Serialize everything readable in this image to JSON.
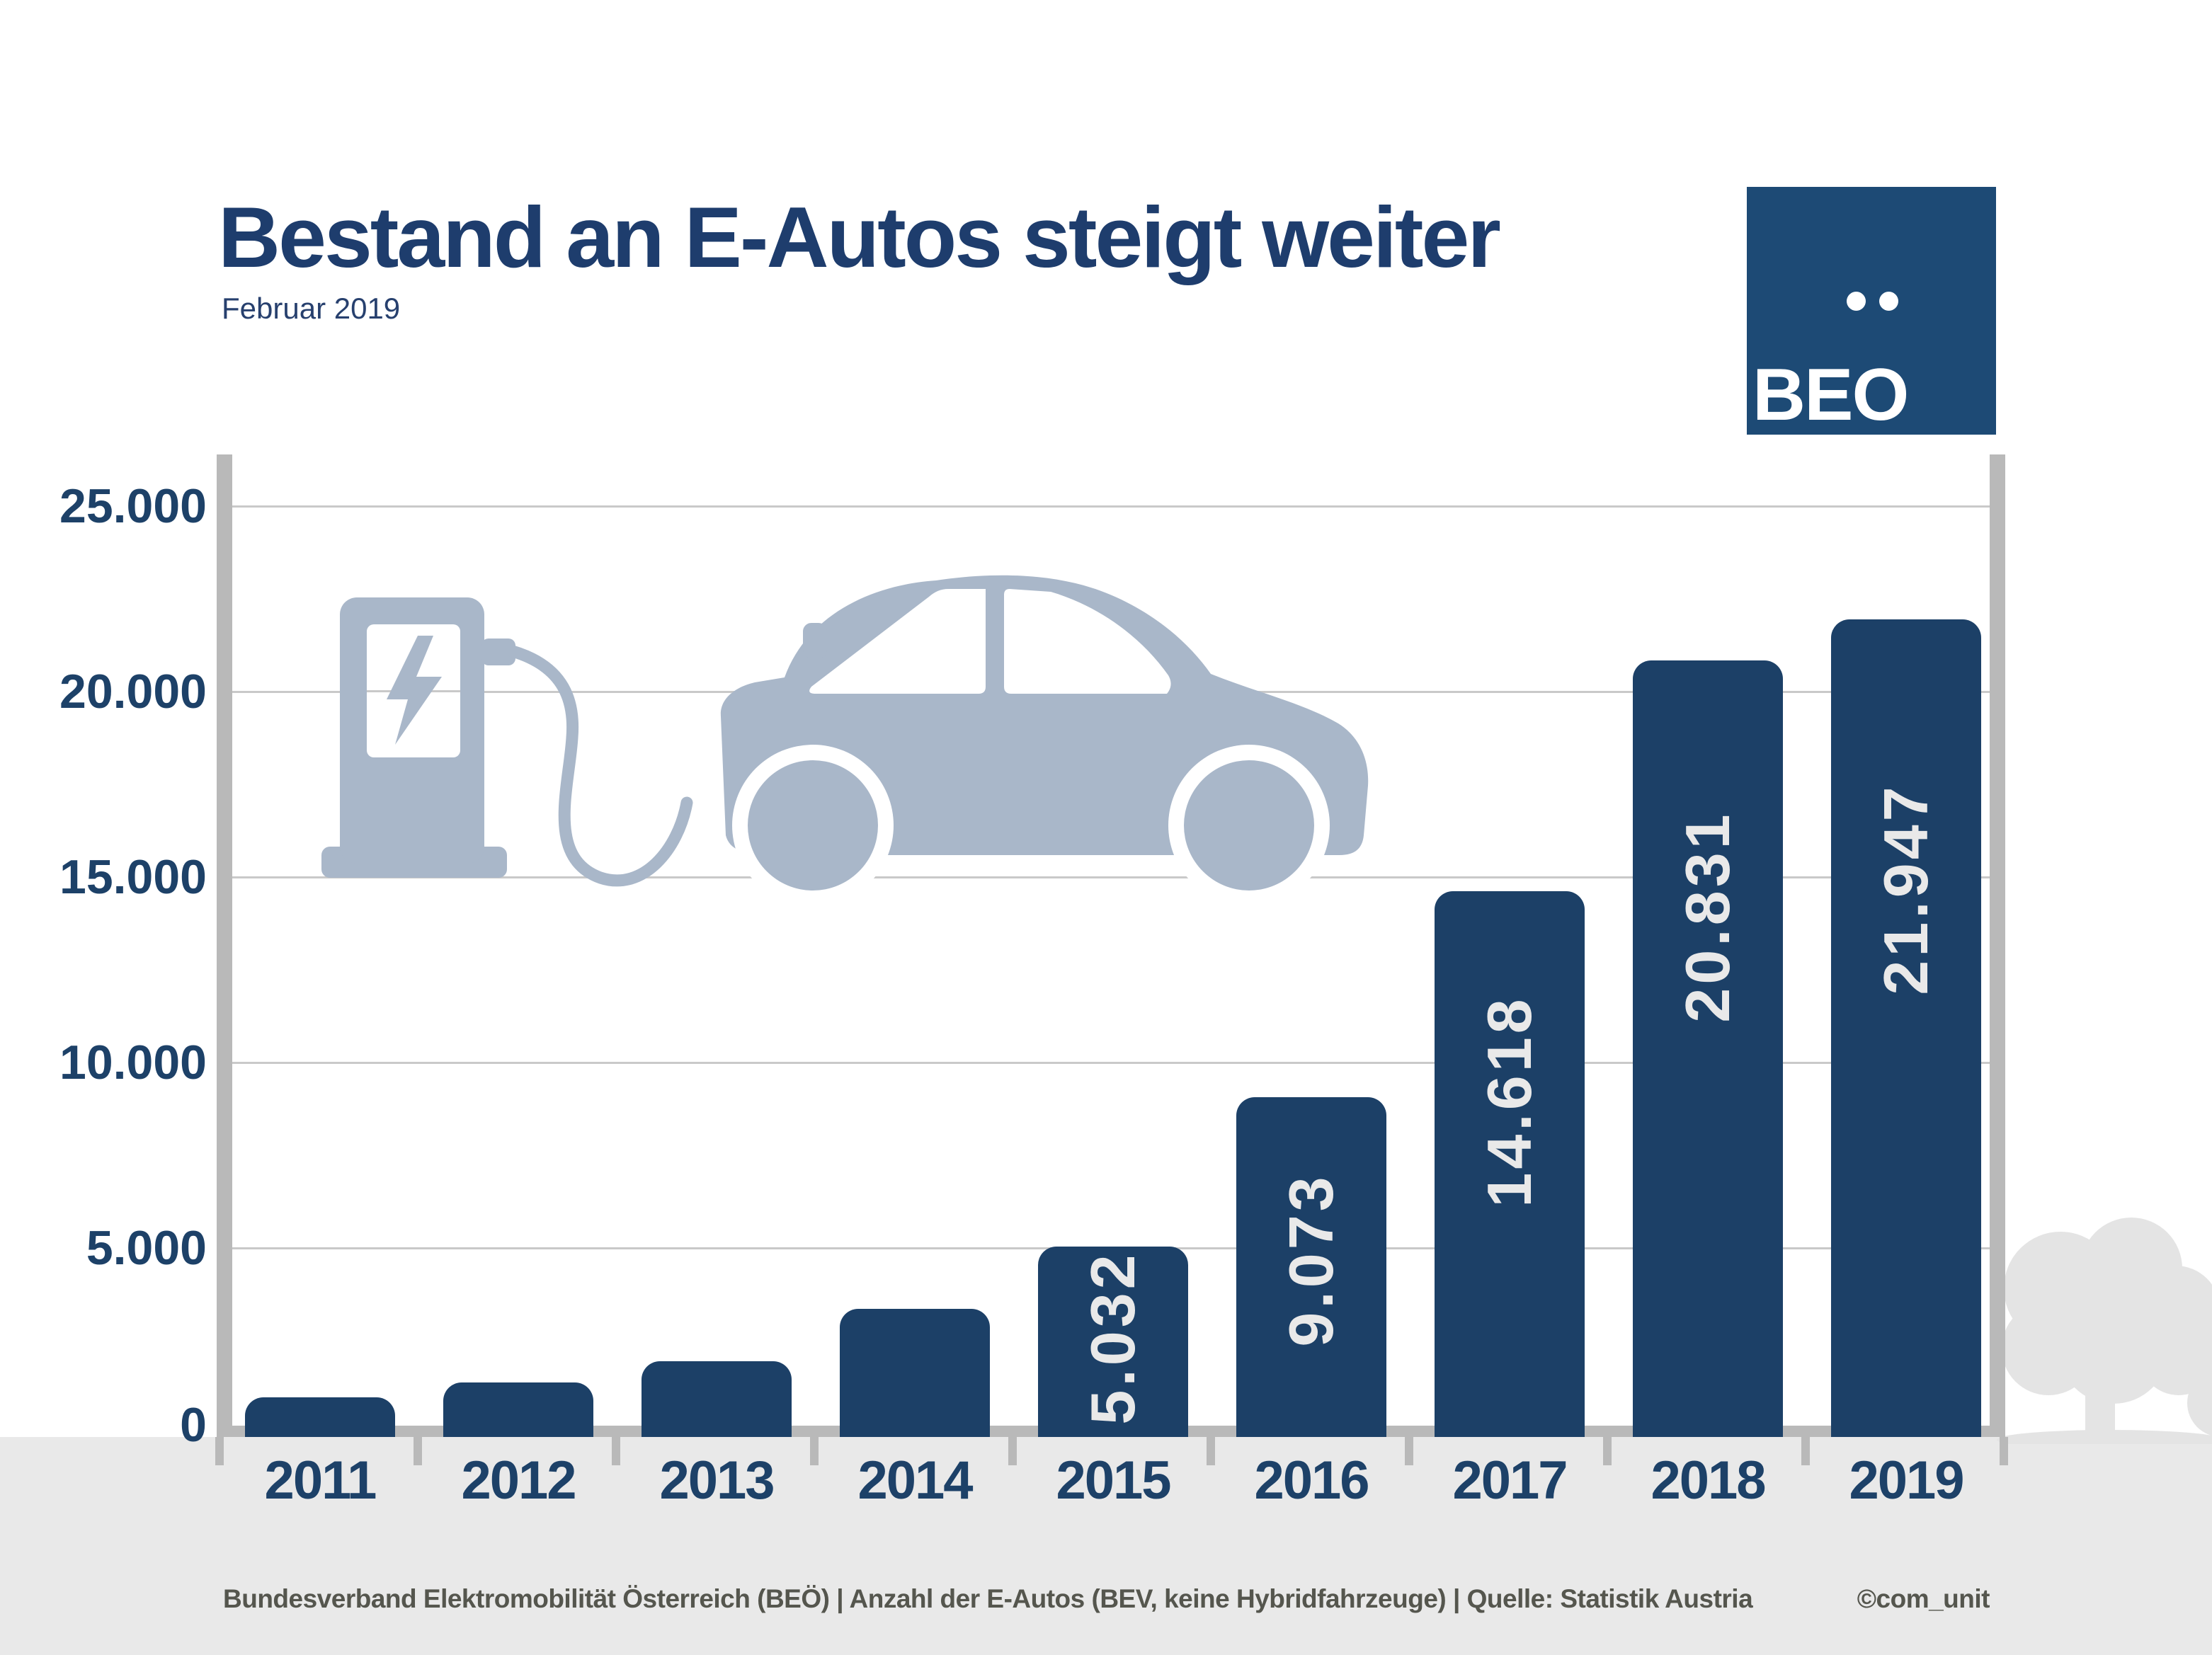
{
  "title": "Bestand an E-Autos steigt weiter",
  "subtitle": "Februar 2019",
  "logo": {
    "name": "BEO"
  },
  "footer": {
    "source_line": "Bundesverband Elektromobilität Österreich (BEÖ) | Anzahl der E-Autos (BEV, keine Hybridfahrzeuge) | Quelle: Statistik Austria",
    "credit": "©com_unit"
  },
  "chart_data": {
    "type": "bar",
    "title": "Bestand an E-Autos steigt weiter",
    "subtitle": "Februar 2019",
    "categories": [
      "2011",
      "2012",
      "2013",
      "2014",
      "2015",
      "2016",
      "2017",
      "2018",
      "2019"
    ],
    "values": [
      975,
      1375,
      1950,
      3350,
      5032,
      9073,
      14618,
      20831,
      21947
    ],
    "bar_labels": [
      "",
      "",
      "",
      "",
      "5.032",
      "9.073",
      "14.618",
      "20.831",
      "21.947"
    ],
    "values_estimated_from_pixels": [
      "2011",
      "2012",
      "2013",
      "2014"
    ],
    "y_ticks": [
      {
        "label": "25.000",
        "value": 25000
      },
      {
        "label": "20.000",
        "value": 20000
      },
      {
        "label": "15.000",
        "value": 15000
      },
      {
        "label": "10.000",
        "value": 10000
      },
      {
        "label": "5.000",
        "value": 5000
      },
      {
        "label": "0",
        "value": 0
      }
    ],
    "ylim": [
      0,
      25000
    ],
    "y_tick_interval": 5000,
    "gridlines": true,
    "legend": null,
    "xlabel": "",
    "ylabel": ""
  },
  "graphics": {
    "car_icon": "ev-car-at-charging-station-silhouette",
    "tree_icon": "tree-silhouette"
  },
  "colors": {
    "bar_navy": "#1c4067",
    "title_navy": "#1e3d6d",
    "logo_navy": "#1d4a75",
    "graphic_blue_gray": "#a9b7c9",
    "axis_gray": "#b9b9b9",
    "gridline_gray": "#c9c9c9",
    "footer_bg": "#e9e9e9",
    "footer_text": "#55564e",
    "bar_label_gray": "#e9e9e9",
    "tree_gray": "#e4e4e4"
  }
}
